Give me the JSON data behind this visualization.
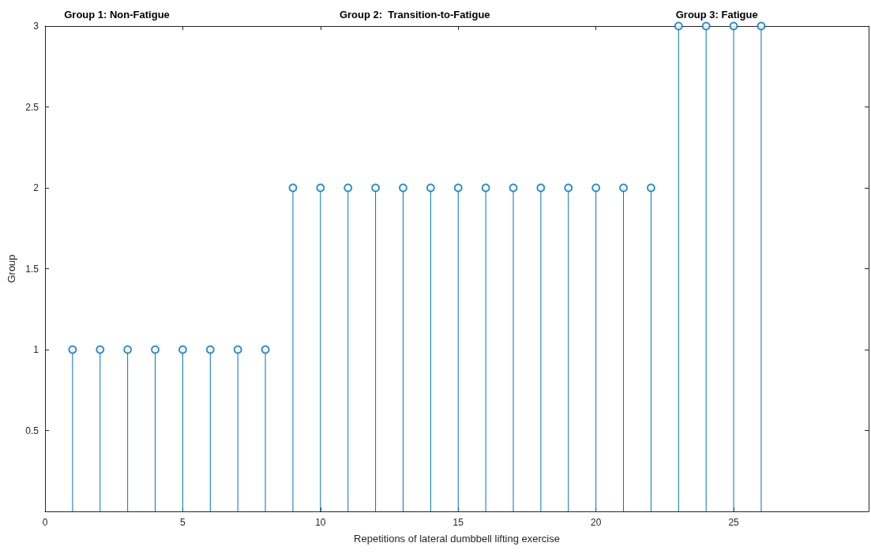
{
  "chart_data": {
    "type": "lollipop",
    "xlabel": "Repetitions of lateral dumbbell lifting exercise",
    "ylabel": "Group",
    "x": [
      1,
      2,
      3,
      4,
      5,
      6,
      7,
      8,
      9,
      10,
      11,
      12,
      13,
      14,
      15,
      16,
      17,
      18,
      19,
      20,
      21,
      22,
      23,
      24,
      25,
      26
    ],
    "values": [
      1,
      1,
      1,
      1,
      1,
      1,
      1,
      1,
      2,
      2,
      2,
      2,
      2,
      2,
      2,
      2,
      2,
      2,
      2,
      2,
      2,
      2,
      3,
      3,
      3,
      3
    ],
    "color": "#0072bd",
    "marker": "circle",
    "xlim": [
      0,
      29.9
    ],
    "xticks": [
      0,
      5,
      10,
      15,
      20,
      25
    ],
    "ylim": [
      0,
      3
    ],
    "yticks": [
      0.5,
      1,
      1.5,
      2,
      2.5,
      3
    ],
    "annotations": [
      "Group 1: Non-Fatigue",
      "Group 2:  Transition-to-Fatigue",
      "Group 3: Fatigue"
    ]
  }
}
